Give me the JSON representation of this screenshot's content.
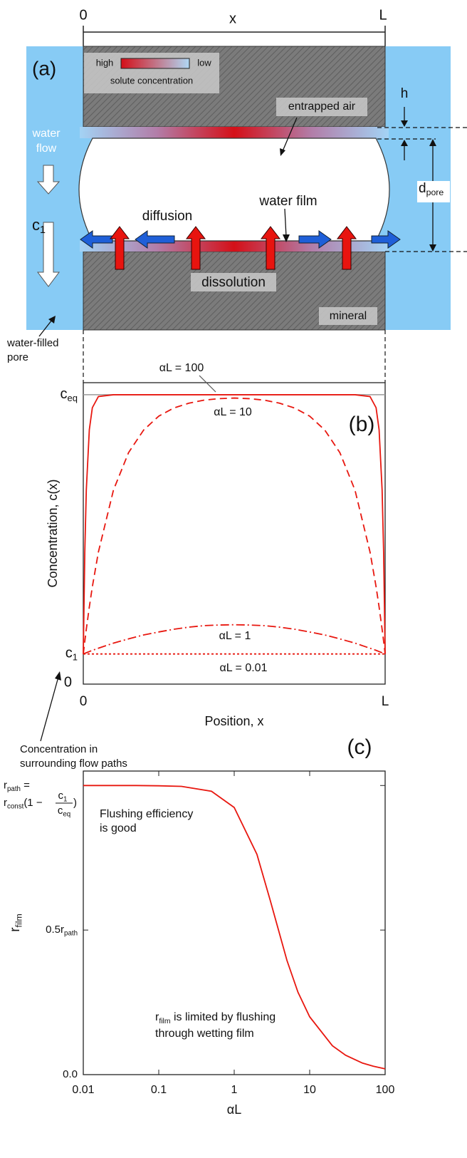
{
  "panel_a": {
    "label": "(a)",
    "span": {
      "start": "0",
      "symbol": "x",
      "end": "L"
    },
    "legend": {
      "high": "high",
      "low": "low",
      "caption": "solute concentration"
    },
    "entrapped_air": "entrapped air",
    "h": "h",
    "water_flow": [
      "water",
      "flow"
    ],
    "c1": {
      "symbol": "c",
      "sub": "1"
    },
    "d_pore": {
      "symbol": "d",
      "sub": "pore"
    },
    "diffusion": "diffusion",
    "water_film": "water film",
    "dissolution": "dissolution",
    "mineral": "mineral",
    "water_filled_pore": [
      "water-filled",
      "pore"
    ]
  },
  "chart_data": [
    {
      "type": "line",
      "panel_label": "(b)",
      "xlabel": "Position, x",
      "ylabel": "Concentration, c(x)",
      "x": [
        0,
        0.005,
        0.01,
        0.02,
        0.03,
        0.05,
        0.1,
        0.15,
        0.2,
        0.25,
        0.3,
        0.35,
        0.4,
        0.45,
        0.5,
        0.55,
        0.6,
        0.65,
        0.7,
        0.75,
        0.8,
        0.85,
        0.9,
        0.95,
        0.97,
        0.98,
        0.99,
        0.995,
        1
      ],
      "xlim": [
        0,
        1
      ],
      "xticks": [
        0,
        {
          "value": 1,
          "label": "L"
        }
      ],
      "ylim": [
        0,
        1
      ],
      "yticks": [
        0,
        {
          "value": 0.1,
          "label": "c",
          "sub": "1"
        },
        {
          "value": 0.96,
          "label": "c",
          "sub": "eq",
          "grid": true
        }
      ],
      "series": [
        {
          "name": "αL = 100",
          "color": "#e8170f",
          "dash": "solid",
          "values": [
            0.1,
            0.438,
            0.644,
            0.844,
            0.917,
            0.954,
            0.96,
            0.96,
            0.96,
            0.96,
            0.96,
            0.96,
            0.96,
            0.96,
            0.96,
            0.96,
            0.96,
            0.96,
            0.96,
            0.96,
            0.96,
            0.96,
            0.96,
            0.954,
            0.917,
            0.844,
            0.644,
            0.438,
            0.1
          ]
        },
        {
          "name": "αL = 10",
          "color": "#e8170f",
          "dash": "dashed",
          "values": [
            0.1,
            0.142,
            0.182,
            0.256,
            0.323,
            0.438,
            0.644,
            0.768,
            0.843,
            0.889,
            0.916,
            0.932,
            0.942,
            0.947,
            0.949,
            0.947,
            0.942,
            0.932,
            0.916,
            0.889,
            0.843,
            0.768,
            0.644,
            0.438,
            0.323,
            0.256,
            0.182,
            0.142,
            0.1
          ]
        },
        {
          "name": "αL = 1",
          "color": "#e8170f",
          "dash": "dashdot",
          "values": [
            0.1,
            0.102,
            0.104,
            0.108,
            0.112,
            0.119,
            0.136,
            0.15,
            0.163,
            0.173,
            0.182,
            0.189,
            0.194,
            0.196,
            0.197,
            0.196,
            0.194,
            0.189,
            0.182,
            0.173,
            0.163,
            0.15,
            0.136,
            0.119,
            0.112,
            0.108,
            0.104,
            0.102,
            0.1
          ]
        },
        {
          "name": "αL = 0.01",
          "color": "#e8170f",
          "dash": "dotted",
          "values": [
            0.1,
            0.1,
            0.1,
            0.1,
            0.1,
            0.1,
            0.1,
            0.1,
            0.1,
            0.1,
            0.1,
            0.1,
            0.1,
            0.1,
            0.1,
            0.1,
            0.1,
            0.1,
            0.1,
            0.1,
            0.1,
            0.1,
            0.1,
            0.1,
            0.1,
            0.1,
            0.1,
            0.1,
            0.1
          ]
        }
      ],
      "annotation": [
        "Concentration in",
        "surrounding flow paths"
      ]
    },
    {
      "type": "line",
      "panel_label": "(c)",
      "xlabel": "αL",
      "ylabel": {
        "symbol": "r",
        "sub": "film"
      },
      "xscale": "log",
      "tick_marks": true,
      "x": [
        0.01,
        0.02,
        0.05,
        0.1,
        0.2,
        0.5,
        1,
        2,
        3,
        5,
        7,
        10,
        20,
        30,
        50,
        70,
        100
      ],
      "xlim": [
        0.01,
        100
      ],
      "xticks": [
        0.01,
        0.1,
        1,
        10,
        100
      ],
      "ylim": [
        0,
        1.05
      ],
      "yticks": [
        {
          "value": 0,
          "label": "0.0"
        },
        {
          "value": 0.5,
          "label": "0.5r",
          "sub": "path"
        },
        {
          "value": 1,
          "label": "r",
          "sub": "path",
          "suffix": " ="
        }
      ],
      "series": [
        {
          "color": "#e8170f",
          "dash": "solid",
          "values": [
            1,
            1,
            1,
            0.999,
            0.997,
            0.98,
            0.924,
            0.762,
            0.603,
            0.395,
            0.285,
            0.2,
            0.1,
            0.067,
            0.04,
            0.029,
            0.02
          ]
        }
      ],
      "rate_expression": {
        "symbol": "r",
        "sub": "const",
        "open": "(1 −",
        "numerator": {
          "symbol": "c",
          "sub": "1"
        },
        "denominator": {
          "symbol": "c",
          "sub": "eq"
        },
        "close": ")"
      },
      "good_note": [
        "Flushing efficiency",
        "is good"
      ],
      "limited_note": {
        "symbol": "r",
        "sub": "film",
        "lines": [
          " is limited by flushing",
          "through wetting film"
        ]
      }
    }
  ]
}
